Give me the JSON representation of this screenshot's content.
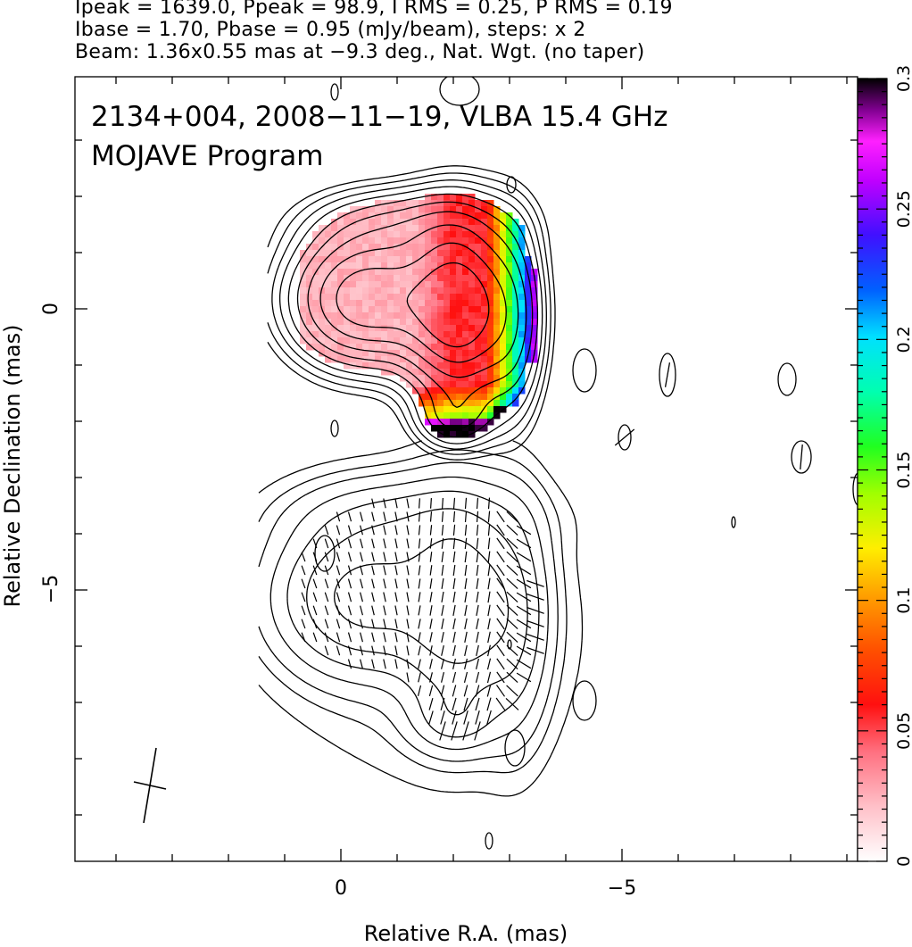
{
  "header": {
    "line1": "Ipeak = 1639.0, Ppeak = 98.9, I RMS = 0.25, P RMS = 0.19",
    "line2": "Ibase = 1.70, Pbase = 0.95 (mJy/beam), steps: x 2",
    "line3": "Beam: 1.36x0.55 mas at −9.3 deg., Nat. Wgt. (no taper)"
  },
  "chart_data": {
    "type": "heatmap",
    "title": "2134+004, 2008−11−19, VLBA 15.4 GHz",
    "subtitle": "MOJAVE Program",
    "xlabel": "Relative R.A. (mas)",
    "ylabel": "Relative Declination (mas)",
    "x_ticks": [
      "0",
      "−5"
    ],
    "y_ticks": [
      "0",
      "−5"
    ],
    "xlim": [
      4.7,
      -9.2
    ],
    "ylim": [
      -9.8,
      4.1
    ],
    "colorbar": {
      "ticks": [
        "0",
        "0.05",
        "0.1",
        "0.15",
        "0.2",
        "0.25",
        "0.3"
      ],
      "range": [
        0,
        0.3
      ]
    },
    "beam": {
      "major_mas": 1.36,
      "minor_mas": 0.55,
      "pa_deg": -9.3
    },
    "panels": [
      {
        "name": "fractional polarization with total intensity contours",
        "dec_offset_mas": 0
      },
      {
        "name": "total intensity contours with EVPA sticks",
        "dec_offset_mas": -5.3
      }
    ],
    "components": [
      {
        "ra": -0.45,
        "dec": 0.2,
        "value": 0.02
      },
      {
        "ra": -2.15,
        "dec": 0.0,
        "value": 0.05
      },
      {
        "ra": -3.35,
        "dec": -0.2,
        "value": 0.18
      }
    ],
    "grid": false,
    "legend": "colorbar right"
  }
}
